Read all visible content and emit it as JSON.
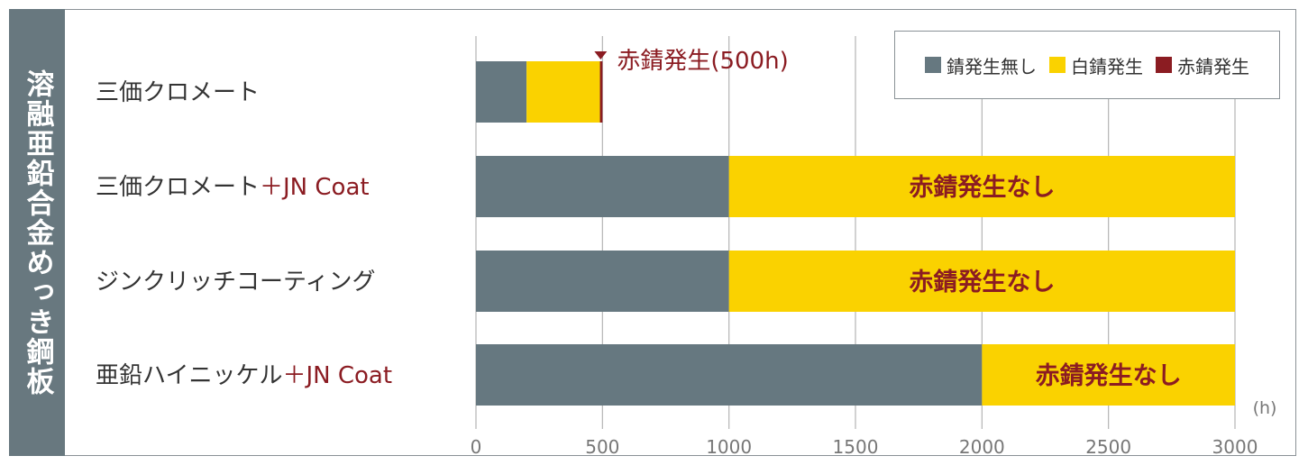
{
  "side_label": "溶融亜鉛合金めっき鋼板",
  "colors": {
    "no_rust": "#667880",
    "white_rust": "#fad200",
    "red_rust": "#8b1c22",
    "label_red": "#8b1c22",
    "side_bg": "#68787f",
    "grid": "#b4b4b4",
    "text": "#333333",
    "tick_text": "#777777"
  },
  "chart_data": {
    "type": "bar",
    "orientation": "horizontal",
    "stacked": true,
    "xlim": [
      0,
      3000
    ],
    "xticks": [
      "0",
      "500",
      "1000",
      "1500",
      "2000",
      "2500",
      "3000"
    ],
    "xunit": "(h)",
    "grid": true,
    "legend_position": "top-right",
    "categories": [
      {
        "main": "三価クロメート",
        "suffix": ""
      },
      {
        "main": "三価クロメート",
        "suffix": "＋JN Coat"
      },
      {
        "main": "ジンクリッチコーティング",
        "suffix": ""
      },
      {
        "main": "亜鉛ハイニッケル",
        "suffix": "＋JN Coat"
      }
    ],
    "series": [
      {
        "name": "錆発生無し",
        "color_key": "no_rust",
        "values": [
          200,
          1000,
          1000,
          2000
        ]
      },
      {
        "name": "白錆発生",
        "color_key": "white_rust",
        "values": [
          290,
          2000,
          2000,
          1000
        ]
      },
      {
        "name": "赤錆発生",
        "color_key": "red_rust",
        "values": [
          10,
          0,
          0,
          0
        ]
      }
    ],
    "bar_labels": [
      "",
      "赤錆発生なし",
      "赤錆発生なし",
      "赤錆発生なし"
    ],
    "annotation": {
      "text": "赤錆発生(500h)",
      "x": 500,
      "row": 0
    }
  }
}
